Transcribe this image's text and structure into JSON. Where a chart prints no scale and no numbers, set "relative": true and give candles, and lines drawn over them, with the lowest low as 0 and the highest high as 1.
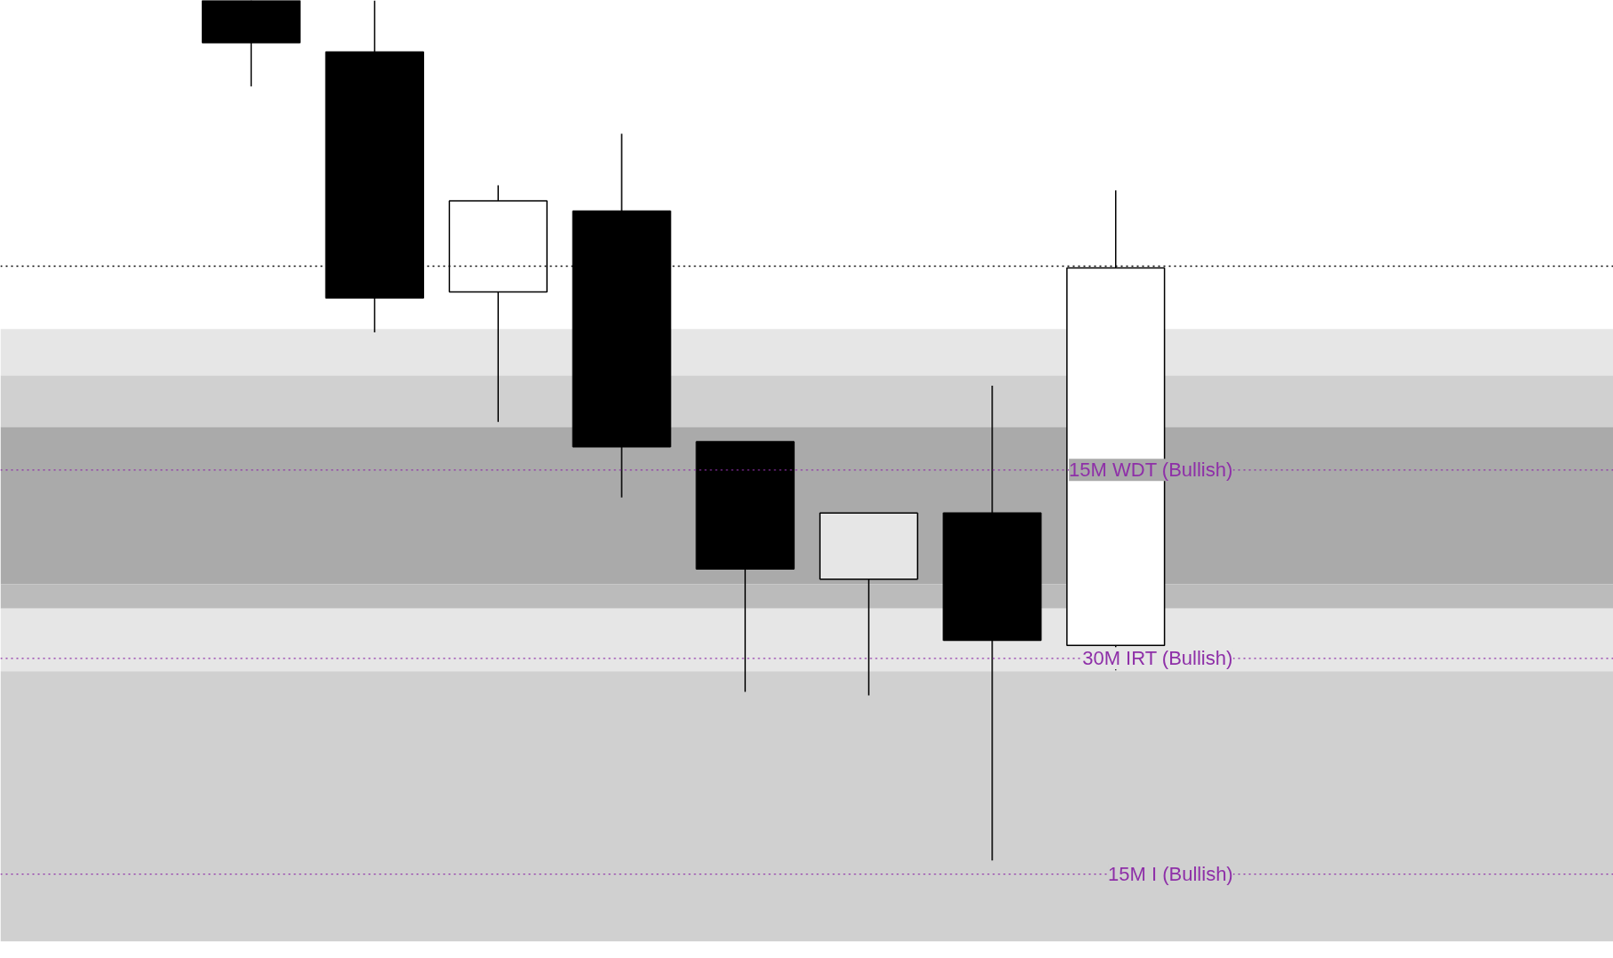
{
  "chart_data": {
    "type": "candlestick",
    "relative": true,
    "categories": [
      null,
      null,
      null,
      null,
      null,
      null,
      null,
      null
    ],
    "ohlc": [
      [
        1.0,
        1.0,
        0.9,
        0.951
      ],
      [
        0.94,
        1.0,
        0.614,
        0.654
      ],
      [
        0.661,
        0.785,
        0.51,
        0.767
      ],
      [
        0.755,
        0.845,
        0.422,
        0.481
      ],
      [
        0.487,
        0.487,
        0.196,
        0.339
      ],
      [
        0.327,
        0.404,
        0.192,
        0.404
      ],
      [
        0.404,
        0.552,
        0.0,
        0.256
      ],
      [
        0.25,
        0.779,
        0.221,
        0.689
      ]
    ],
    "colors": [
      "#000000",
      "#000000",
      "#ffffff",
      "#000000",
      "#000000",
      "#e6e6e6",
      "#000000",
      "#ffffff"
    ],
    "bands": [
      {
        "axis": "y",
        "from": 0.564,
        "to": 0.618,
        "color": "#e6e6e6"
      },
      {
        "axis": "y",
        "from": 0.504,
        "to": 0.564,
        "color": "#d0d0d0"
      },
      {
        "axis": "y",
        "from": 0.321,
        "to": 0.504,
        "color": "#aaaaaa"
      },
      {
        "axis": "y",
        "from": 0.293,
        "to": 0.321,
        "color": "#bbbbbb"
      },
      {
        "axis": "y",
        "from": 0.22,
        "to": 0.293,
        "color": "#e6e6e6"
      },
      {
        "axis": "y",
        "from": -0.094,
        "to": 0.22,
        "color": "#d0d0d0"
      }
    ],
    "ref_lines": [
      {
        "axis": "y",
        "value": 0.691,
        "color": "#000000",
        "line_style": "dotted"
      },
      {
        "axis": "y",
        "value": 0.454,
        "label": "15M WDT (Bullish)",
        "color": "#8e2fa8",
        "line_style": "dotted"
      },
      {
        "axis": "y",
        "value": 0.235,
        "label": "30M IRT (Bullish)",
        "color": "#8e2fa8",
        "line_style": "dotted"
      },
      {
        "axis": "y",
        "value": -0.016,
        "label": "15M I (Bullish)",
        "color": "#8e2fa8",
        "line_style": "dotted"
      }
    ],
    "grid": false
  }
}
